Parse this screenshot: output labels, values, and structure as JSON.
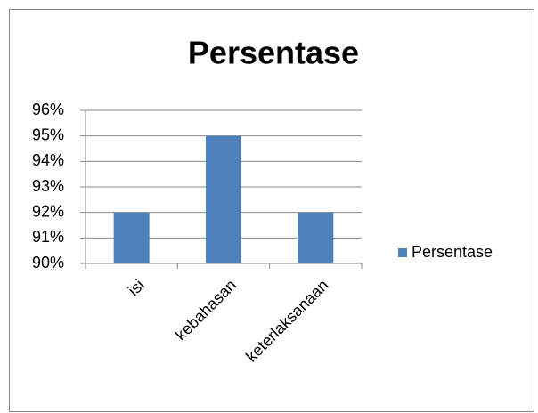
{
  "chart_data": {
    "type": "bar",
    "title": "Persentase",
    "categories": [
      "isi",
      "kebahasan",
      "keterlaksanaan"
    ],
    "series": [
      {
        "name": "Persentase",
        "color": "#4f81bd",
        "values": [
          92,
          95,
          92
        ]
      }
    ],
    "ylim": [
      90,
      96
    ],
    "yticks": [
      {
        "value": 90,
        "label": "90%"
      },
      {
        "value": 91,
        "label": "91%"
      },
      {
        "value": 92,
        "label": "92%"
      },
      {
        "value": 93,
        "label": "93%"
      },
      {
        "value": 94,
        "label": "94%"
      },
      {
        "value": 95,
        "label": "95%"
      },
      {
        "value": 96,
        "label": "96%"
      }
    ],
    "grid": true,
    "legend": "right"
  }
}
